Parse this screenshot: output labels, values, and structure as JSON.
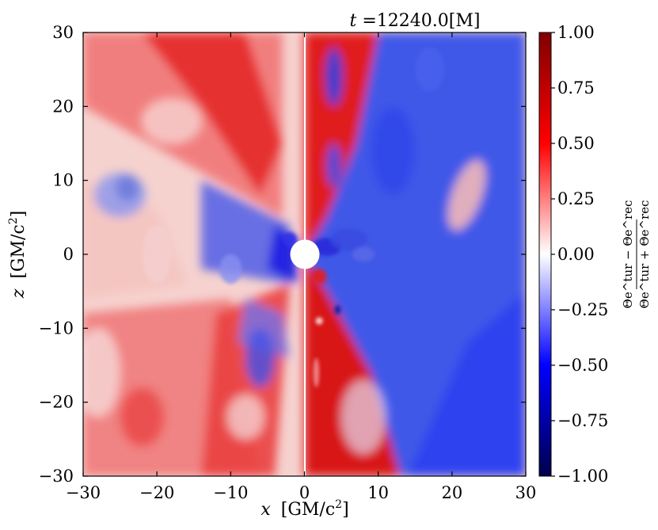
{
  "chart_data": {
    "type": "heatmap",
    "title": "t =12240.0[M]",
    "title_var": "t",
    "title_value": "=12240.0[M]",
    "xlabel": "x [GM/c²]",
    "xlabel_var": "x",
    "xlabel_unit": "[GM/c",
    "xlabel_sup": "2",
    "xlabel_end": "]",
    "ylabel": "z [GM/c²]",
    "ylabel_var": "z",
    "ylabel_unit": "[GM/c",
    "ylabel_sup": "2",
    "ylabel_end": "]",
    "xlim": [
      -30,
      30
    ],
    "ylim": [
      -30,
      30
    ],
    "xticks": [
      -30,
      -20,
      -10,
      0,
      10,
      20,
      30
    ],
    "xtick_labels": [
      "−30",
      "−20",
      "−10",
      "0",
      "10",
      "20",
      "30"
    ],
    "yticks": [
      -30,
      -20,
      -10,
      0,
      10,
      20,
      30
    ],
    "ytick_labels": [
      "−30",
      "−20",
      "−10",
      "0",
      "10",
      "20",
      "30"
    ],
    "colorbar": {
      "colormap": "seismic",
      "range": [
        -1.0,
        1.0
      ],
      "ticks": [
        1.0,
        0.75,
        0.5,
        0.25,
        0.0,
        -0.25,
        -0.5,
        -0.75,
        -1.0
      ],
      "tick_labels": [
        "1.00",
        "0.75",
        "0.50",
        "0.25",
        "0.00",
        "−0.25",
        "−0.50",
        "−0.75",
        "−1.00"
      ],
      "label_numerator": "Θe^tur − Θe^rec",
      "label_denominator": "Θe^tur + Θe^rec",
      "colors": [
        "#00004c",
        "#0000ff",
        "#ffffff",
        "#ff0000",
        "#800000"
      ]
    },
    "central_circle_radius": 2,
    "divider_x": 0,
    "grid": false
  }
}
